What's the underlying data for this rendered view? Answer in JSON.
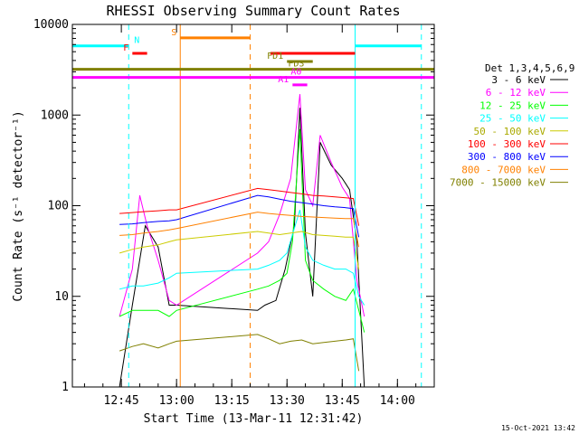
{
  "chart_data": {
    "type": "line",
    "title": "RHESSI Observing Summary Count Rates",
    "xlabel": "Start Time (13-Mar-11 12:31:42)",
    "ylabel": "Count Rate (s⁻¹ detector⁻¹)",
    "y_scale": "log",
    "ylim": [
      1,
      10000
    ],
    "xlim": [
      "12:31:42",
      "14:10:00"
    ],
    "x_ticks": [
      "12:45",
      "13:00",
      "13:15",
      "13:30",
      "13:45",
      "14:00"
    ],
    "y_ticks": [
      "1",
      "10",
      "100",
      "1000",
      "10000"
    ],
    "grid": false,
    "legend_position": "right",
    "legend_title": "Det 1,3,4,5,6,9",
    "footer_date": "15-Oct-2021 13:42",
    "series": [
      {
        "name": "3 - 6 keV",
        "color": "#000000",
        "points": [
          [
            "12:44:30",
            1
          ],
          [
            "12:48:00",
            8
          ],
          [
            "12:51:30",
            60
          ],
          [
            "12:55:00",
            35
          ],
          [
            "12:58:00",
            8
          ],
          [
            "13:00:00",
            8
          ],
          [
            "13:22:00",
            7
          ],
          [
            "13:24:00",
            8
          ],
          [
            "13:27:00",
            9
          ],
          [
            "13:29:30",
            20
          ],
          [
            "13:32:00",
            60
          ],
          [
            "13:33:30",
            1200
          ],
          [
            "13:35:00",
            50
          ],
          [
            "13:37:00",
            10
          ],
          [
            "13:39:00",
            500
          ],
          [
            "13:42:00",
            280
          ],
          [
            "13:45:00",
            200
          ],
          [
            "13:47:00",
            150
          ],
          [
            "13:49:00",
            40
          ],
          [
            "13:51:00",
            1
          ]
        ]
      },
      {
        "name": "6 - 12 keV",
        "color": "#ff00ff",
        "points": [
          [
            "12:44:30",
            6
          ],
          [
            "12:48:00",
            20
          ],
          [
            "12:50:00",
            130
          ],
          [
            "12:52:00",
            60
          ],
          [
            "12:55:00",
            25
          ],
          [
            "12:58:00",
            9
          ],
          [
            "13:00:00",
            8
          ],
          [
            "13:22:00",
            30
          ],
          [
            "13:25:00",
            40
          ],
          [
            "13:28:00",
            80
          ],
          [
            "13:31:00",
            200
          ],
          [
            "13:33:30",
            1700
          ],
          [
            "13:35:00",
            150
          ],
          [
            "13:37:00",
            100
          ],
          [
            "13:39:00",
            600
          ],
          [
            "13:42:00",
            300
          ],
          [
            "13:45:00",
            160
          ],
          [
            "13:47:00",
            120
          ],
          [
            "13:49:00",
            15
          ],
          [
            "13:51:00",
            6
          ]
        ]
      },
      {
        "name": "12 - 25 keV",
        "color": "#00ff00",
        "points": [
          [
            "12:44:30",
            6
          ],
          [
            "12:48:00",
            7
          ],
          [
            "12:51:00",
            7
          ],
          [
            "12:55:00",
            7
          ],
          [
            "12:58:00",
            6
          ],
          [
            "13:00:00",
            7
          ],
          [
            "13:22:00",
            12
          ],
          [
            "13:25:00",
            13
          ],
          [
            "13:28:00",
            15
          ],
          [
            "13:30:00",
            18
          ],
          [
            "13:31:30",
            40
          ],
          [
            "13:33:30",
            700
          ],
          [
            "13:35:00",
            25
          ],
          [
            "13:37:00",
            15
          ],
          [
            "13:40:00",
            12
          ],
          [
            "13:43:00",
            10
          ],
          [
            "13:46:00",
            9
          ],
          [
            "13:48:00",
            12
          ],
          [
            "13:49:30",
            7
          ],
          [
            "13:51:00",
            4
          ]
        ]
      },
      {
        "name": "25 - 50 keV",
        "color": "#00ffff",
        "points": [
          [
            "12:44:30",
            12
          ],
          [
            "12:48:00",
            13
          ],
          [
            "12:51:00",
            13
          ],
          [
            "12:55:00",
            14
          ],
          [
            "12:58:00",
            16
          ],
          [
            "13:00:00",
            18
          ],
          [
            "13:22:00",
            20
          ],
          [
            "13:25:00",
            22
          ],
          [
            "13:28:00",
            25
          ],
          [
            "13:30:00",
            30
          ],
          [
            "13:33:30",
            90
          ],
          [
            "13:35:00",
            35
          ],
          [
            "13:37:00",
            25
          ],
          [
            "13:40:00",
            22
          ],
          [
            "13:43:00",
            20
          ],
          [
            "13:46:00",
            20
          ],
          [
            "13:48:00",
            18
          ],
          [
            "13:49:30",
            10
          ],
          [
            "13:51:00",
            8
          ]
        ]
      },
      {
        "name": "50 - 100 keV",
        "color": "#cccc00",
        "points": [
          [
            "12:44:30",
            30
          ],
          [
            "12:48:00",
            33
          ],
          [
            "12:51:00",
            35
          ],
          [
            "12:55:00",
            37
          ],
          [
            "12:58:00",
            40
          ],
          [
            "13:00:00",
            42
          ],
          [
            "13:22:00",
            52
          ],
          [
            "13:25:00",
            50
          ],
          [
            "13:28:00",
            48
          ],
          [
            "13:31:00",
            50
          ],
          [
            "13:34:00",
            52
          ],
          [
            "13:37:00",
            48
          ],
          [
            "13:40:00",
            47
          ],
          [
            "13:43:00",
            46
          ],
          [
            "13:46:00",
            45
          ],
          [
            "13:48:00",
            45
          ],
          [
            "13:49:30",
            20
          ]
        ]
      },
      {
        "name": "100 - 300 keV",
        "color": "#ff0000",
        "points": [
          [
            "12:44:30",
            82
          ],
          [
            "12:48:00",
            84
          ],
          [
            "12:51:00",
            86
          ],
          [
            "12:55:00",
            88
          ],
          [
            "12:58:00",
            90
          ],
          [
            "13:00:00",
            90
          ],
          [
            "13:22:00",
            155
          ],
          [
            "13:25:00",
            150
          ],
          [
            "13:28:00",
            145
          ],
          [
            "13:31:00",
            140
          ],
          [
            "13:34:00",
            135
          ],
          [
            "13:37:00",
            130
          ],
          [
            "13:40:00",
            128
          ],
          [
            "13:43:00",
            125
          ],
          [
            "13:46:00",
            122
          ],
          [
            "13:48:00",
            120
          ],
          [
            "13:49:30",
            60
          ]
        ]
      },
      {
        "name": "300 - 800 keV",
        "color": "#0000ff",
        "points": [
          [
            "12:44:30",
            62
          ],
          [
            "12:48:00",
            63
          ],
          [
            "12:51:00",
            65
          ],
          [
            "12:55:00",
            67
          ],
          [
            "12:58:00",
            68
          ],
          [
            "13:00:00",
            70
          ],
          [
            "13:22:00",
            130
          ],
          [
            "13:25:00",
            125
          ],
          [
            "13:28:00",
            118
          ],
          [
            "13:31:00",
            112
          ],
          [
            "13:34:00",
            108
          ],
          [
            "13:37:00",
            104
          ],
          [
            "13:40:00",
            100
          ],
          [
            "13:43:00",
            97
          ],
          [
            "13:46:00",
            95
          ],
          [
            "13:48:00",
            93
          ],
          [
            "13:49:30",
            45
          ]
        ]
      },
      {
        "name": "800 - 7000 keV",
        "color": "#ff8000",
        "points": [
          [
            "12:44:30",
            47
          ],
          [
            "12:48:00",
            48
          ],
          [
            "12:51:00",
            50
          ],
          [
            "12:55:00",
            52
          ],
          [
            "12:58:00",
            54
          ],
          [
            "13:00:00",
            56
          ],
          [
            "13:22:00",
            85
          ],
          [
            "13:25:00",
            82
          ],
          [
            "13:28:00",
            80
          ],
          [
            "13:31:00",
            78
          ],
          [
            "13:34:00",
            76
          ],
          [
            "13:37:00",
            75
          ],
          [
            "13:40:00",
            74
          ],
          [
            "13:43:00",
            73
          ],
          [
            "13:46:00",
            72
          ],
          [
            "13:48:00",
            72
          ],
          [
            "13:49:30",
            35
          ]
        ]
      },
      {
        "name": "7000 - 15000 keV",
        "color": "#808000",
        "points": [
          [
            "12:44:30",
            2.5
          ],
          [
            "12:48:00",
            2.8
          ],
          [
            "12:51:00",
            3.0
          ],
          [
            "12:55:00",
            2.7
          ],
          [
            "12:58:00",
            3.0
          ],
          [
            "13:00:00",
            3.2
          ],
          [
            "13:22:00",
            3.8
          ],
          [
            "13:25:00",
            3.4
          ],
          [
            "13:28:00",
            3.0
          ],
          [
            "13:31:00",
            3.2
          ],
          [
            "13:34:00",
            3.3
          ],
          [
            "13:37:00",
            3.0
          ],
          [
            "13:40:00",
            3.1
          ],
          [
            "13:43:00",
            3.2
          ],
          [
            "13:46:00",
            3.3
          ],
          [
            "13:48:00",
            3.4
          ],
          [
            "13:49:30",
            1.5
          ]
        ]
      }
    ],
    "flag_bars": [
      {
        "label": "N",
        "color": "#00ffff",
        "y": 5800,
        "start": "12:31:42",
        "end": "12:47:00"
      },
      {
        "label": "",
        "color": "#00ffff",
        "y": 5800,
        "start": "13:48:30",
        "end": "14:06:30"
      },
      {
        "label": "S",
        "color": "#ff8000",
        "y": 7100,
        "start": "13:01:00",
        "end": "13:20:00"
      },
      {
        "label": "F",
        "color": "#ff0000",
        "y": 4800,
        "start": "12:48:00",
        "end": "12:52:00"
      },
      {
        "label": "",
        "color": "#ff0000",
        "y": 4800,
        "start": "13:25:30",
        "end": "13:48:30"
      },
      {
        "label": "FD1",
        "color": "#808000",
        "y": 3900,
        "start": "13:30:00",
        "end": "13:37:00"
      },
      {
        "label": "FD3",
        "color": "#808000",
        "y": 3200,
        "start": "12:31:42",
        "end": "14:10:00"
      },
      {
        "label": "A0",
        "color": "#ff00ff",
        "y": 2600,
        "start": "12:31:42",
        "end": "14:10:00"
      },
      {
        "label": "A1",
        "color": "#ff00ff",
        "y": 2150,
        "start": "13:31:30",
        "end": "13:35:30"
      }
    ],
    "vertical_lines": [
      {
        "time": "12:31:42",
        "color": "#00ffff",
        "style": "solid"
      },
      {
        "time": "12:47:00",
        "color": "#00ffff",
        "style": "dashed"
      },
      {
        "time": "13:01:00",
        "color": "#ff8000",
        "style": "solid"
      },
      {
        "time": "13:20:00",
        "color": "#ff8000",
        "style": "dashed"
      },
      {
        "time": "13:48:30",
        "color": "#00ffff",
        "style": "solid"
      },
      {
        "time": "14:06:30",
        "color": "#00ffff",
        "style": "dashed"
      }
    ]
  }
}
